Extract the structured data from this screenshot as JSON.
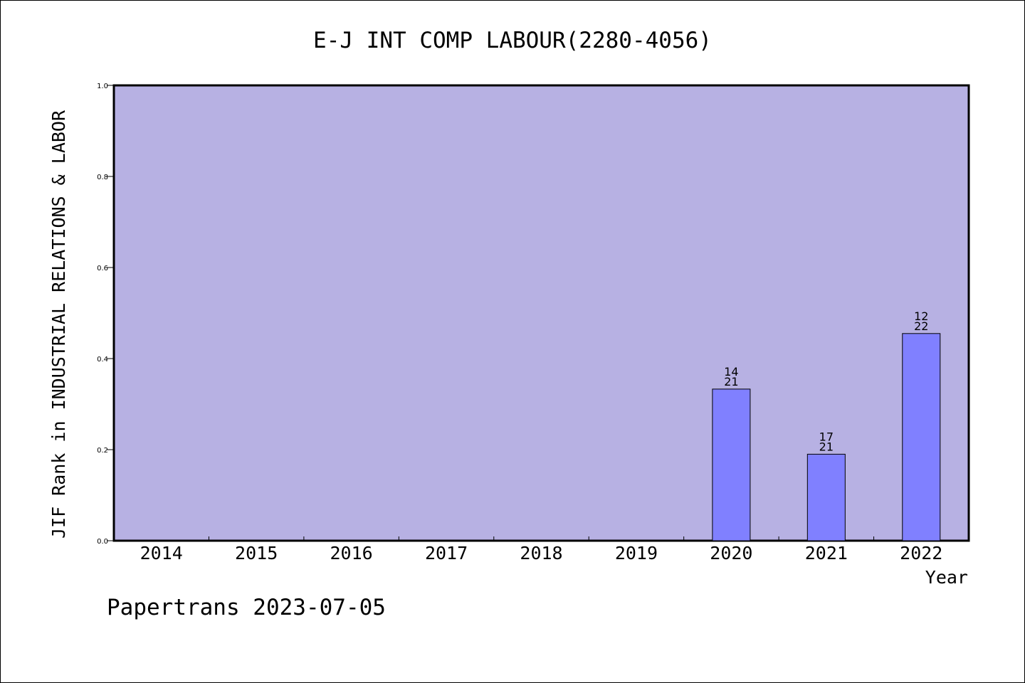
{
  "chart_data": {
    "type": "bar",
    "title": "E-J INT COMP LABOUR(2280-4056)",
    "xlabel": "Year",
    "ylabel": "JIF Rank in INDUSTRIAL RELATIONS & LABOR",
    "ylim": [
      0,
      1.0
    ],
    "yticks": [
      "0.0",
      "0.2",
      "0.4",
      "0.6",
      "0.8",
      "1.0"
    ],
    "categories": [
      "2014",
      "2015",
      "2016",
      "2017",
      "2018",
      "2019",
      "2020",
      "2021",
      "2022"
    ],
    "values": [
      null,
      null,
      null,
      null,
      null,
      null,
      0.333,
      0.19,
      0.455
    ],
    "label_top": [
      "",
      "",
      "",
      "",
      "",
      "",
      "14",
      "17",
      "12"
    ],
    "label_bottom": [
      "",
      "",
      "",
      "",
      "",
      "",
      "21",
      "21",
      "22"
    ],
    "grid": false,
    "colors": {
      "plot_bg": "#b7b1e3",
      "bar": "#8080ff",
      "axis": "#000000"
    }
  },
  "footer": "Papertrans 2023-07-05"
}
